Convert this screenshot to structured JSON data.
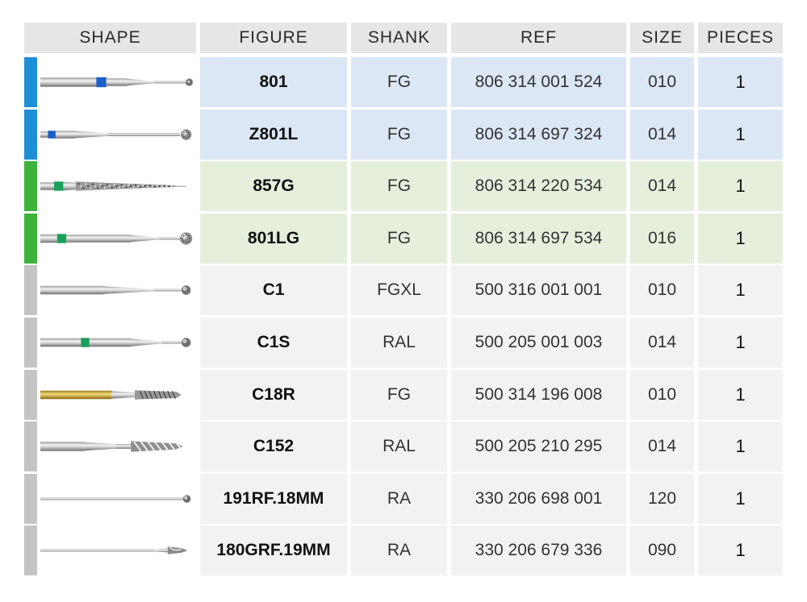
{
  "table": {
    "headers": {
      "shape": "SHAPE",
      "figure": "FIGURE",
      "shank": "SHANK",
      "ref": "REF",
      "size": "SIZE",
      "pieces": "PIECES"
    },
    "colors": {
      "header_bg": "#e6e6e6",
      "blue_bar": "#1d8fd6",
      "blue_row": "#dce7f6",
      "green_bar": "#3db23a",
      "green_row": "#e5efdc",
      "gray_bar": "#c4c4c4",
      "gray_row": "#f2f2f2"
    },
    "rows": [
      {
        "figure": "801",
        "shank": "FG",
        "ref": "806 314 001 524",
        "size": "010",
        "pieces": "1",
        "group": "blue",
        "bur": "ball-diamond-blue-band"
      },
      {
        "figure": "Z801L",
        "shank": "FG",
        "ref": "806 314 697 324",
        "size": "014",
        "pieces": "1",
        "group": "blue",
        "bur": "ball-diamond-long-blue-band"
      },
      {
        "figure": "857G",
        "shank": "FG",
        "ref": "806 314 220 534",
        "size": "014",
        "pieces": "1",
        "group": "green",
        "bur": "needle-diamond-green-band"
      },
      {
        "figure": "801LG",
        "shank": "FG",
        "ref": "806 314 697 534",
        "size": "016",
        "pieces": "1",
        "group": "green",
        "bur": "ball-diamond-green-band"
      },
      {
        "figure": "C1",
        "shank": "FGXL",
        "ref": "500 316 001 001",
        "size": "010",
        "pieces": "1",
        "group": "gray",
        "bur": "round-carbide"
      },
      {
        "figure": "C1S",
        "shank": "RAL",
        "ref": "500 205 001 003",
        "size": "014",
        "pieces": "1",
        "group": "gray",
        "bur": "round-carbide-green-band"
      },
      {
        "figure": "C18R",
        "shank": "FG",
        "ref": "500 314 196 008",
        "size": "010",
        "pieces": "1",
        "group": "gray",
        "bur": "gold-fissure-carbide"
      },
      {
        "figure": "C152",
        "shank": "RAL",
        "ref": "500 205 210 295",
        "size": "014",
        "pieces": "1",
        "group": "gray",
        "bur": "spiral-carbide"
      },
      {
        "figure": "191RF.18MM",
        "shank": "RA",
        "ref": "330 206 698 001",
        "size": "120",
        "pieces": "1",
        "group": "gray",
        "bur": "thin-ball-reamer"
      },
      {
        "figure": "180GRF.19MM",
        "shank": "RA",
        "ref": "330 206 679 336",
        "size": "090",
        "pieces": "1",
        "group": "gray",
        "bur": "thin-drill"
      }
    ]
  }
}
